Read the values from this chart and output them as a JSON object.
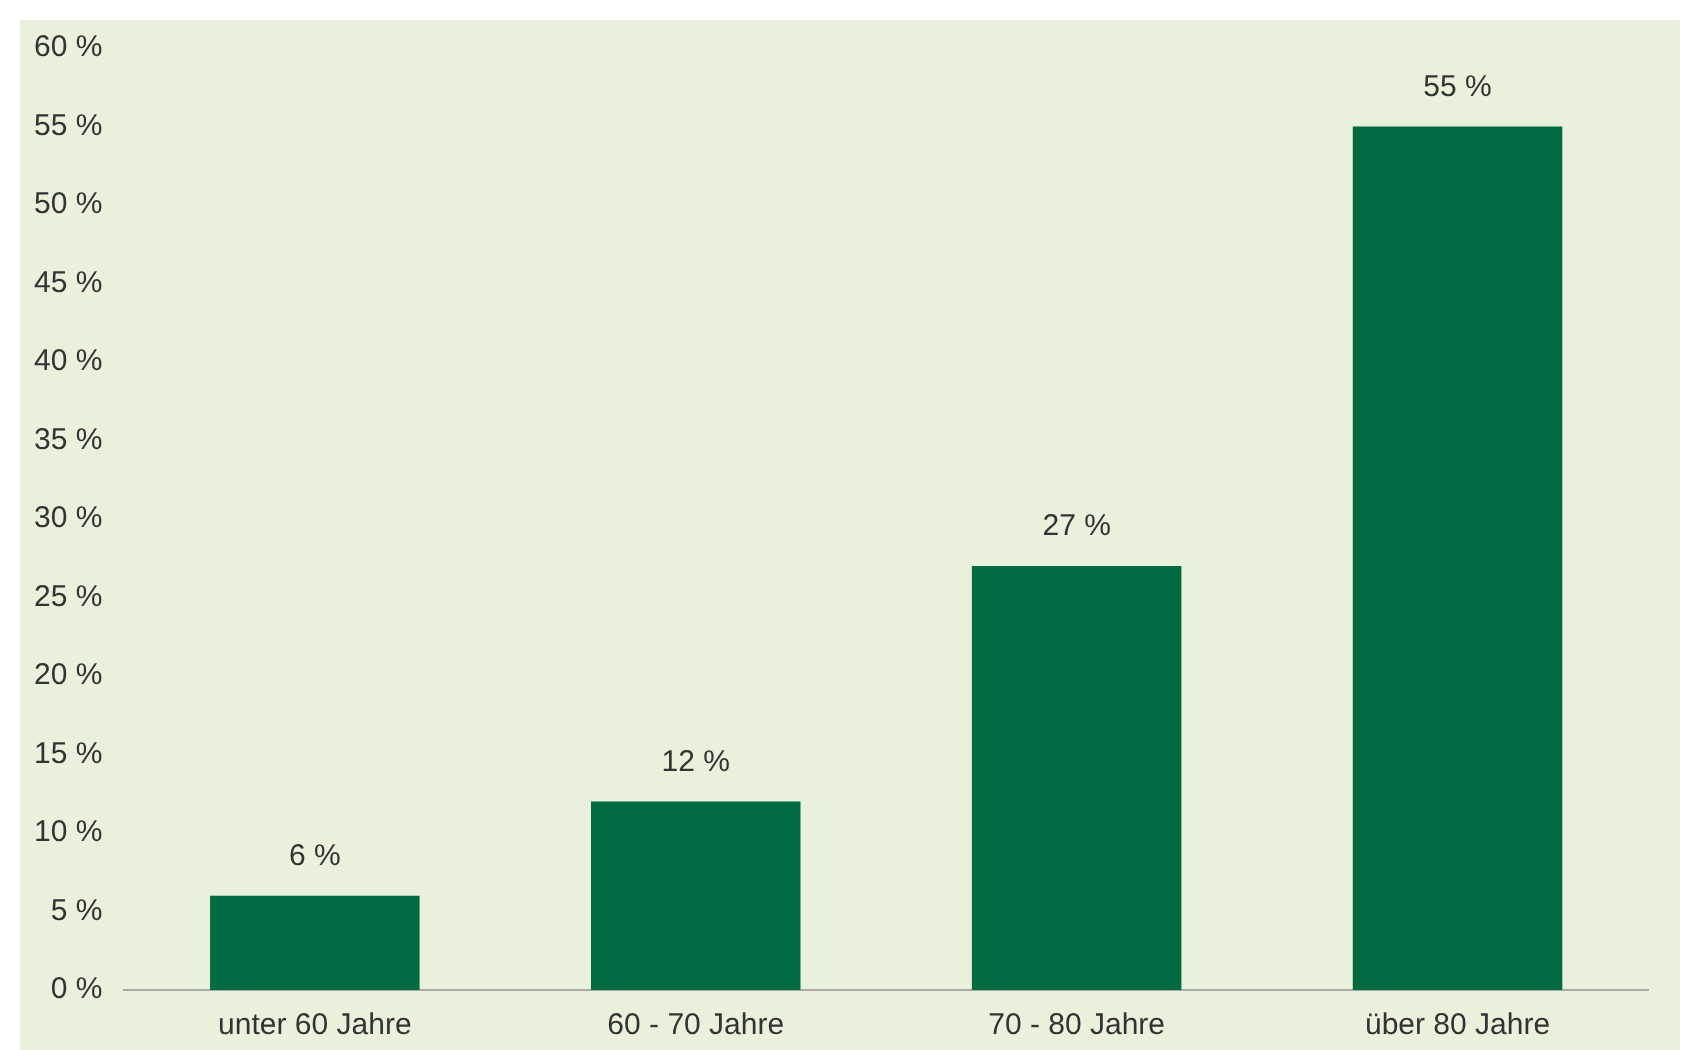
{
  "chart_data": {
    "type": "bar",
    "categories": [
      "unter 60 Jahre",
      "60 - 70 Jahre",
      "70 - 80 Jahre",
      "über 80 Jahre"
    ],
    "values": [
      6,
      12,
      27,
      55
    ],
    "color": "#006a40",
    "value_labels": [
      "6 %",
      "12 %",
      "27 %",
      "55 %"
    ],
    "ylim": [
      0,
      60
    ],
    "yticks": [
      {
        "value": 0,
        "label": "0 %"
      },
      {
        "value": 5,
        "label": "5 %"
      },
      {
        "value": 10,
        "label": "10 %"
      },
      {
        "value": 15,
        "label": "15 %"
      },
      {
        "value": 20,
        "label": "20 %"
      },
      {
        "value": 25,
        "label": "25 %"
      },
      {
        "value": 30,
        "label": "30 %"
      },
      {
        "value": 35,
        "label": "35 %"
      },
      {
        "value": 40,
        "label": "40 %"
      },
      {
        "value": 45,
        "label": "45 %"
      },
      {
        "value": 50,
        "label": "50 %"
      },
      {
        "value": 55,
        "label": "55 %"
      },
      {
        "value": 60,
        "label": "60 %"
      }
    ],
    "grid": false,
    "legend": false
  }
}
